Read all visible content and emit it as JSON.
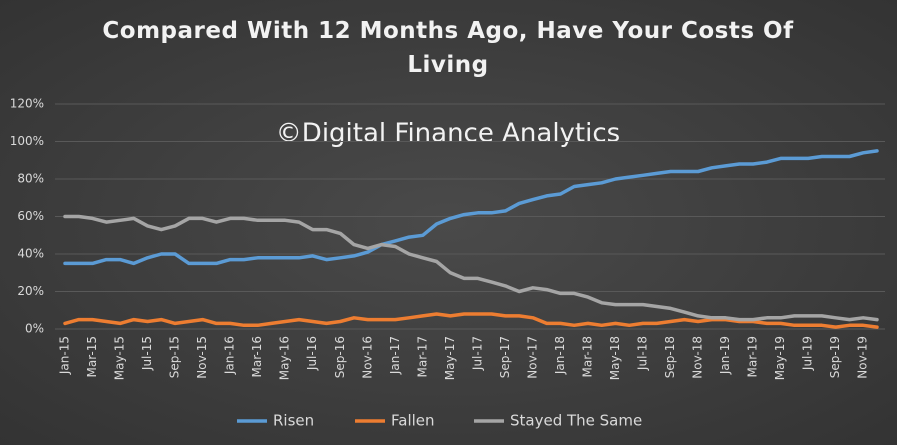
{
  "chart_data": {
    "type": "line",
    "title": "Compared With 12 Months Ago, Have Your Costs Of Living",
    "annotation": "©Digital Finance Analytics",
    "categories": [
      "Jan-15",
      null,
      "Mar-15",
      null,
      "May-15",
      null,
      "Jul-15",
      null,
      "Sep-15",
      null,
      "Nov-15",
      null,
      "Jan-16",
      null,
      "Mar-16",
      null,
      "May-16",
      null,
      "Jul-16",
      null,
      "Sep-16",
      null,
      "Nov-16",
      null,
      "Jan-17",
      null,
      "Mar-17",
      null,
      "May-17",
      null,
      "Jul-17",
      null,
      "Sep-17",
      null,
      "Nov-17",
      null,
      "Jan-18",
      null,
      "Mar-18",
      null,
      "May-18",
      null,
      "Jul-18",
      null,
      "Sep-18",
      null,
      "Nov-18",
      null,
      "Jan-19",
      null,
      "Mar-19",
      null,
      "May-19",
      null,
      "Jul-19",
      null,
      "Sep-19",
      null,
      "Nov-19",
      null
    ],
    "series": [
      {
        "name": "Risen",
        "color": "#5b9bd5",
        "values": [
          35,
          35,
          35,
          37,
          37,
          35,
          38,
          40,
          40,
          35,
          35,
          35,
          37,
          37,
          38,
          38,
          38,
          38,
          39,
          37,
          38,
          39,
          41,
          45,
          47,
          49,
          50,
          56,
          59,
          61,
          62,
          62,
          63,
          67,
          69,
          71,
          72,
          76,
          77,
          78,
          80,
          81,
          82,
          83,
          84,
          84,
          84,
          86,
          87,
          88,
          88,
          89,
          91,
          91,
          91,
          92,
          92,
          92,
          94,
          95
        ]
      },
      {
        "name": "Fallen",
        "color": "#ed7d31",
        "values": [
          3,
          5,
          5,
          4,
          3,
          5,
          4,
          5,
          3,
          4,
          5,
          3,
          3,
          2,
          2,
          3,
          4,
          5,
          4,
          3,
          4,
          6,
          5,
          5,
          5,
          6,
          7,
          8,
          7,
          8,
          8,
          8,
          7,
          7,
          6,
          3,
          3,
          2,
          3,
          2,
          3,
          2,
          3,
          3,
          4,
          5,
          4,
          5,
          5,
          4,
          4,
          3,
          3,
          2,
          2,
          2,
          1,
          2,
          2,
          1
        ]
      },
      {
        "name": "Stayed The Same",
        "color": "#a5a5a5",
        "values": [
          60,
          60,
          59,
          57,
          58,
          59,
          55,
          53,
          55,
          59,
          59,
          57,
          59,
          59,
          58,
          58,
          58,
          57,
          53,
          53,
          51,
          45,
          43,
          45,
          44,
          40,
          38,
          36,
          30,
          27,
          27,
          25,
          23,
          20,
          22,
          21,
          19,
          19,
          17,
          14,
          13,
          13,
          13,
          12,
          11,
          9,
          7,
          6,
          6,
          5,
          5,
          6,
          6,
          7,
          7,
          7,
          6,
          5,
          6,
          5
        ]
      }
    ],
    "ylim": [
      0,
      120
    ],
    "yticks": [
      {
        "value": 0,
        "label": "0%"
      },
      {
        "value": 20,
        "label": "20%"
      },
      {
        "value": 40,
        "label": "40%"
      },
      {
        "value": 60,
        "label": "60%"
      },
      {
        "value": 80,
        "label": "80%"
      },
      {
        "value": 100,
        "label": "100%"
      },
      {
        "value": 120,
        "label": "120%"
      }
    ],
    "grid": true,
    "legend": "bottom"
  }
}
